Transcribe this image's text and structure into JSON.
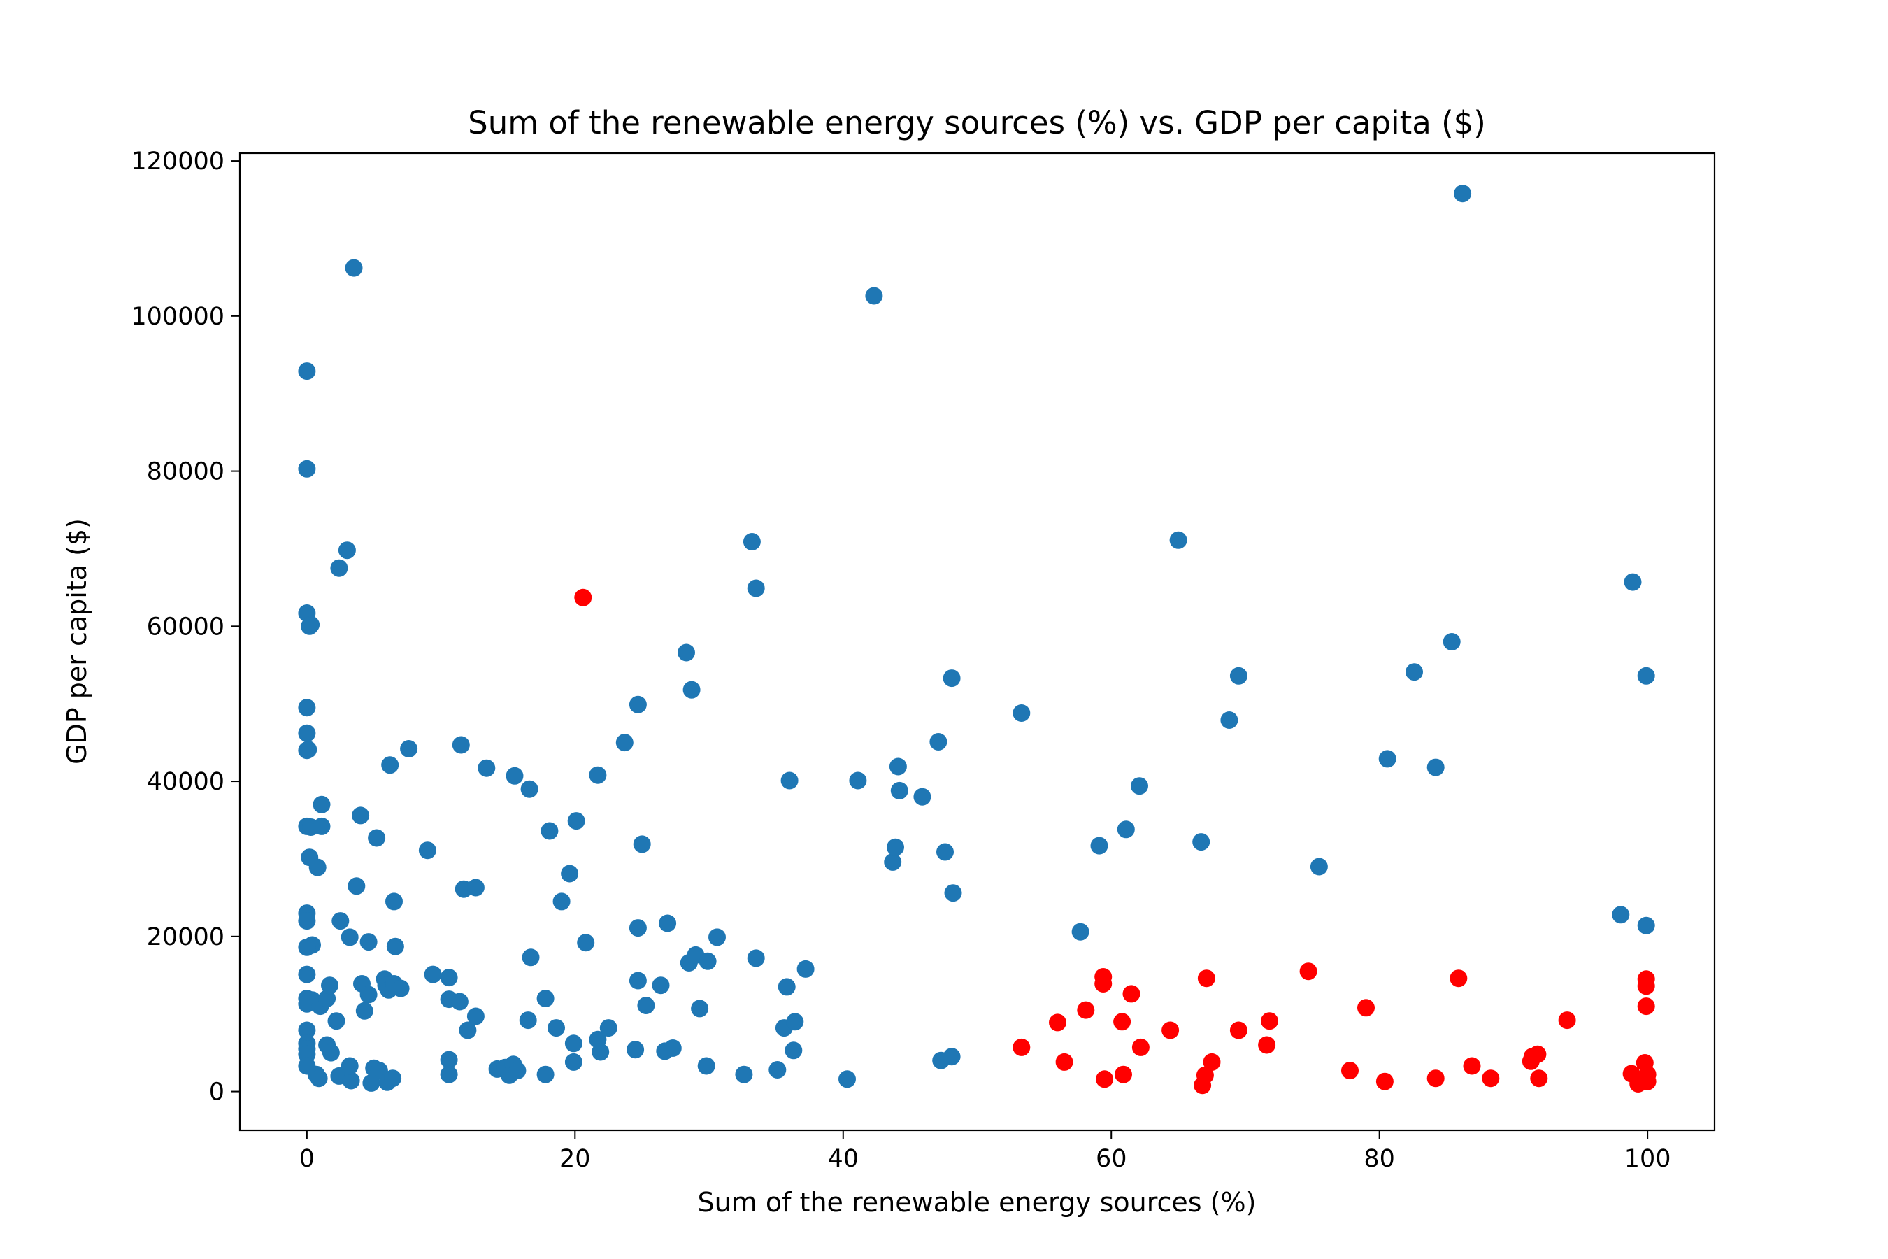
{
  "chart_data": {
    "type": "scatter",
    "title": "Sum of the renewable energy sources (%) vs. GDP per capita ($)",
    "xlabel": "Sum of the renewable energy sources (%)",
    "ylabel": "GDP per capita ($)",
    "xlim": [
      -5,
      105
    ],
    "ylim": [
      -5000,
      121000
    ],
    "xticks": [
      0,
      20,
      40,
      60,
      80,
      100
    ],
    "yticks": [
      0,
      20000,
      40000,
      60000,
      80000,
      100000,
      120000
    ],
    "grid": false,
    "legend": "none",
    "colors": {
      "blue": "#1f77b4",
      "red": "#ff0000"
    },
    "series": [
      {
        "color": "#1f77b4",
        "points": [
          [
            0,
            92900
          ],
          [
            0,
            80300
          ],
          [
            0,
            61700
          ],
          [
            0.3,
            60200
          ],
          [
            0.2,
            60000
          ],
          [
            0,
            49500
          ],
          [
            0,
            46200
          ],
          [
            0.1,
            44100
          ],
          [
            0,
            44000
          ],
          [
            0,
            34200
          ],
          [
            0.3,
            34100
          ],
          [
            0.2,
            30200
          ],
          [
            0.8,
            28900
          ],
          [
            1.1,
            37000
          ],
          [
            1.1,
            34200
          ],
          [
            0,
            23000
          ],
          [
            0,
            22000
          ],
          [
            0.4,
            18900
          ],
          [
            0,
            18600
          ],
          [
            0,
            15100
          ],
          [
            0,
            12000
          ],
          [
            0.4,
            11800
          ],
          [
            0,
            11300
          ],
          [
            1.0,
            11000
          ],
          [
            1.5,
            12000
          ],
          [
            1.7,
            13700
          ],
          [
            0,
            7900
          ],
          [
            0,
            6200
          ],
          [
            0,
            5500
          ],
          [
            0,
            4800
          ],
          [
            0,
            3300
          ],
          [
            0.7,
            2200
          ],
          [
            0.9,
            1700
          ],
          [
            1.5,
            6000
          ],
          [
            1.8,
            5000
          ],
          [
            2.2,
            9100
          ],
          [
            2.5,
            22000
          ],
          [
            3.2,
            19900
          ],
          [
            2.4,
            2000
          ],
          [
            3.0,
            2100
          ],
          [
            3.3,
            1400
          ],
          [
            3.2,
            3300
          ],
          [
            3.7,
            26500
          ],
          [
            4.0,
            35600
          ],
          [
            4.1,
            13900
          ],
          [
            4.3,
            10400
          ],
          [
            4.6,
            12500
          ],
          [
            4.6,
            19300
          ],
          [
            5.2,
            32700
          ],
          [
            5.0,
            3000
          ],
          [
            5.4,
            2700
          ],
          [
            4.8,
            1100
          ],
          [
            5.8,
            14500
          ],
          [
            5.9,
            13700
          ],
          [
            6.1,
            13100
          ],
          [
            6.2,
            42100
          ],
          [
            6.5,
            24500
          ],
          [
            6.6,
            18700
          ],
          [
            6.5,
            13900
          ],
          [
            7.0,
            13300
          ],
          [
            6.0,
            1200
          ],
          [
            6.4,
            1700
          ],
          [
            2.4,
            67500
          ],
          [
            3.0,
            69800
          ],
          [
            3.5,
            106200
          ],
          [
            7.6,
            44200
          ],
          [
            9.0,
            31100
          ],
          [
            9.4,
            15100
          ],
          [
            10.6,
            14700
          ],
          [
            10.6,
            11900
          ],
          [
            11.4,
            11600
          ],
          [
            10.6,
            4100
          ],
          [
            10.6,
            2200
          ],
          [
            11.5,
            44700
          ],
          [
            11.7,
            26100
          ],
          [
            12.6,
            26300
          ],
          [
            12.6,
            9700
          ],
          [
            12.0,
            7900
          ],
          [
            13.4,
            41700
          ],
          [
            14.2,
            2900
          ],
          [
            14.8,
            3100
          ],
          [
            15.1,
            2100
          ],
          [
            15.4,
            3500
          ],
          [
            15.7,
            2700
          ],
          [
            15.5,
            40700
          ],
          [
            16.6,
            39000
          ],
          [
            16.5,
            9200
          ],
          [
            16.7,
            17300
          ],
          [
            17.8,
            12000
          ],
          [
            17.8,
            2200
          ],
          [
            18.1,
            33600
          ],
          [
            18.6,
            8200
          ],
          [
            19.0,
            24500
          ],
          [
            19.6,
            28100
          ],
          [
            19.9,
            6200
          ],
          [
            20.1,
            34900
          ],
          [
            19.9,
            3800
          ],
          [
            20.8,
            19200
          ],
          [
            21.7,
            40800
          ],
          [
            21.7,
            6700
          ],
          [
            21.9,
            5100
          ],
          [
            22.5,
            8200
          ],
          [
            23.7,
            45000
          ],
          [
            24.5,
            5400
          ],
          [
            24.7,
            49900
          ],
          [
            24.7,
            21100
          ],
          [
            24.7,
            14300
          ],
          [
            25.0,
            31900
          ],
          [
            25.3,
            11100
          ],
          [
            26.4,
            13700
          ],
          [
            26.9,
            21700
          ],
          [
            26.7,
            5200
          ],
          [
            27.3,
            5600
          ],
          [
            28.3,
            56600
          ],
          [
            28.7,
            51800
          ],
          [
            28.5,
            16600
          ],
          [
            29.0,
            17600
          ],
          [
            29.3,
            10700
          ],
          [
            29.9,
            16800
          ],
          [
            29.8,
            3300
          ],
          [
            30.6,
            19900
          ],
          [
            32.6,
            2200
          ],
          [
            33.2,
            70900
          ],
          [
            33.5,
            64900
          ],
          [
            33.5,
            17200
          ],
          [
            35.1,
            2800
          ],
          [
            35.8,
            13500
          ],
          [
            35.6,
            8200
          ],
          [
            36.0,
            40100
          ],
          [
            36.3,
            5300
          ],
          [
            36.4,
            9000
          ],
          [
            37.2,
            15800
          ],
          [
            40.3,
            1600
          ],
          [
            41.1,
            40100
          ],
          [
            42.3,
            102600
          ],
          [
            43.7,
            29600
          ],
          [
            43.9,
            31500
          ],
          [
            44.1,
            41900
          ],
          [
            44.2,
            38800
          ],
          [
            45.9,
            38000
          ],
          [
            47.1,
            45100
          ],
          [
            47.3,
            4000
          ],
          [
            47.6,
            30900
          ],
          [
            48.1,
            4500
          ],
          [
            48.1,
            53300
          ],
          [
            48.2,
            25600
          ],
          [
            53.3,
            48800
          ],
          [
            57.7,
            20600
          ],
          [
            59.1,
            31700
          ],
          [
            61.1,
            33800
          ],
          [
            62.1,
            39400
          ],
          [
            65.0,
            71100
          ],
          [
            66.7,
            32200
          ],
          [
            68.8,
            47900
          ],
          [
            69.5,
            53600
          ],
          [
            75.5,
            29000
          ],
          [
            80.6,
            42900
          ],
          [
            82.6,
            54100
          ],
          [
            84.2,
            41800
          ],
          [
            85.4,
            58000
          ],
          [
            86.2,
            115800
          ],
          [
            98.0,
            22800
          ],
          [
            98.9,
            65700
          ],
          [
            99.9,
            53600
          ],
          [
            99.9,
            21400
          ]
        ]
      },
      {
        "color": "#ff0000",
        "points": [
          [
            20.6,
            63700
          ],
          [
            53.3,
            5700
          ],
          [
            56.0,
            8900
          ],
          [
            56.5,
            3800
          ],
          [
            58.1,
            10500
          ],
          [
            59.4,
            14800
          ],
          [
            59.4,
            13900
          ],
          [
            59.5,
            1600
          ],
          [
            60.8,
            9000
          ],
          [
            60.9,
            2200
          ],
          [
            61.5,
            12600
          ],
          [
            62.2,
            5700
          ],
          [
            64.4,
            7900
          ],
          [
            66.8,
            800
          ],
          [
            67.0,
            2100
          ],
          [
            67.1,
            14600
          ],
          [
            67.5,
            3800
          ],
          [
            69.5,
            7900
          ],
          [
            71.6,
            6000
          ],
          [
            71.8,
            9100
          ],
          [
            74.7,
            15500
          ],
          [
            77.8,
            2700
          ],
          [
            79.0,
            10800
          ],
          [
            80.4,
            1300
          ],
          [
            84.2,
            1700
          ],
          [
            85.9,
            14600
          ],
          [
            86.9,
            3300
          ],
          [
            88.3,
            1700
          ],
          [
            91.3,
            3900
          ],
          [
            91.4,
            4500
          ],
          [
            91.8,
            4800
          ],
          [
            91.9,
            1700
          ],
          [
            94.0,
            9200
          ],
          [
            98.8,
            2300
          ],
          [
            99.3,
            1000
          ],
          [
            99.8,
            3700
          ],
          [
            99.9,
            14500
          ],
          [
            99.9,
            13600
          ],
          [
            99.9,
            11000
          ],
          [
            100,
            2200
          ],
          [
            100,
            1300
          ]
        ]
      }
    ]
  }
}
